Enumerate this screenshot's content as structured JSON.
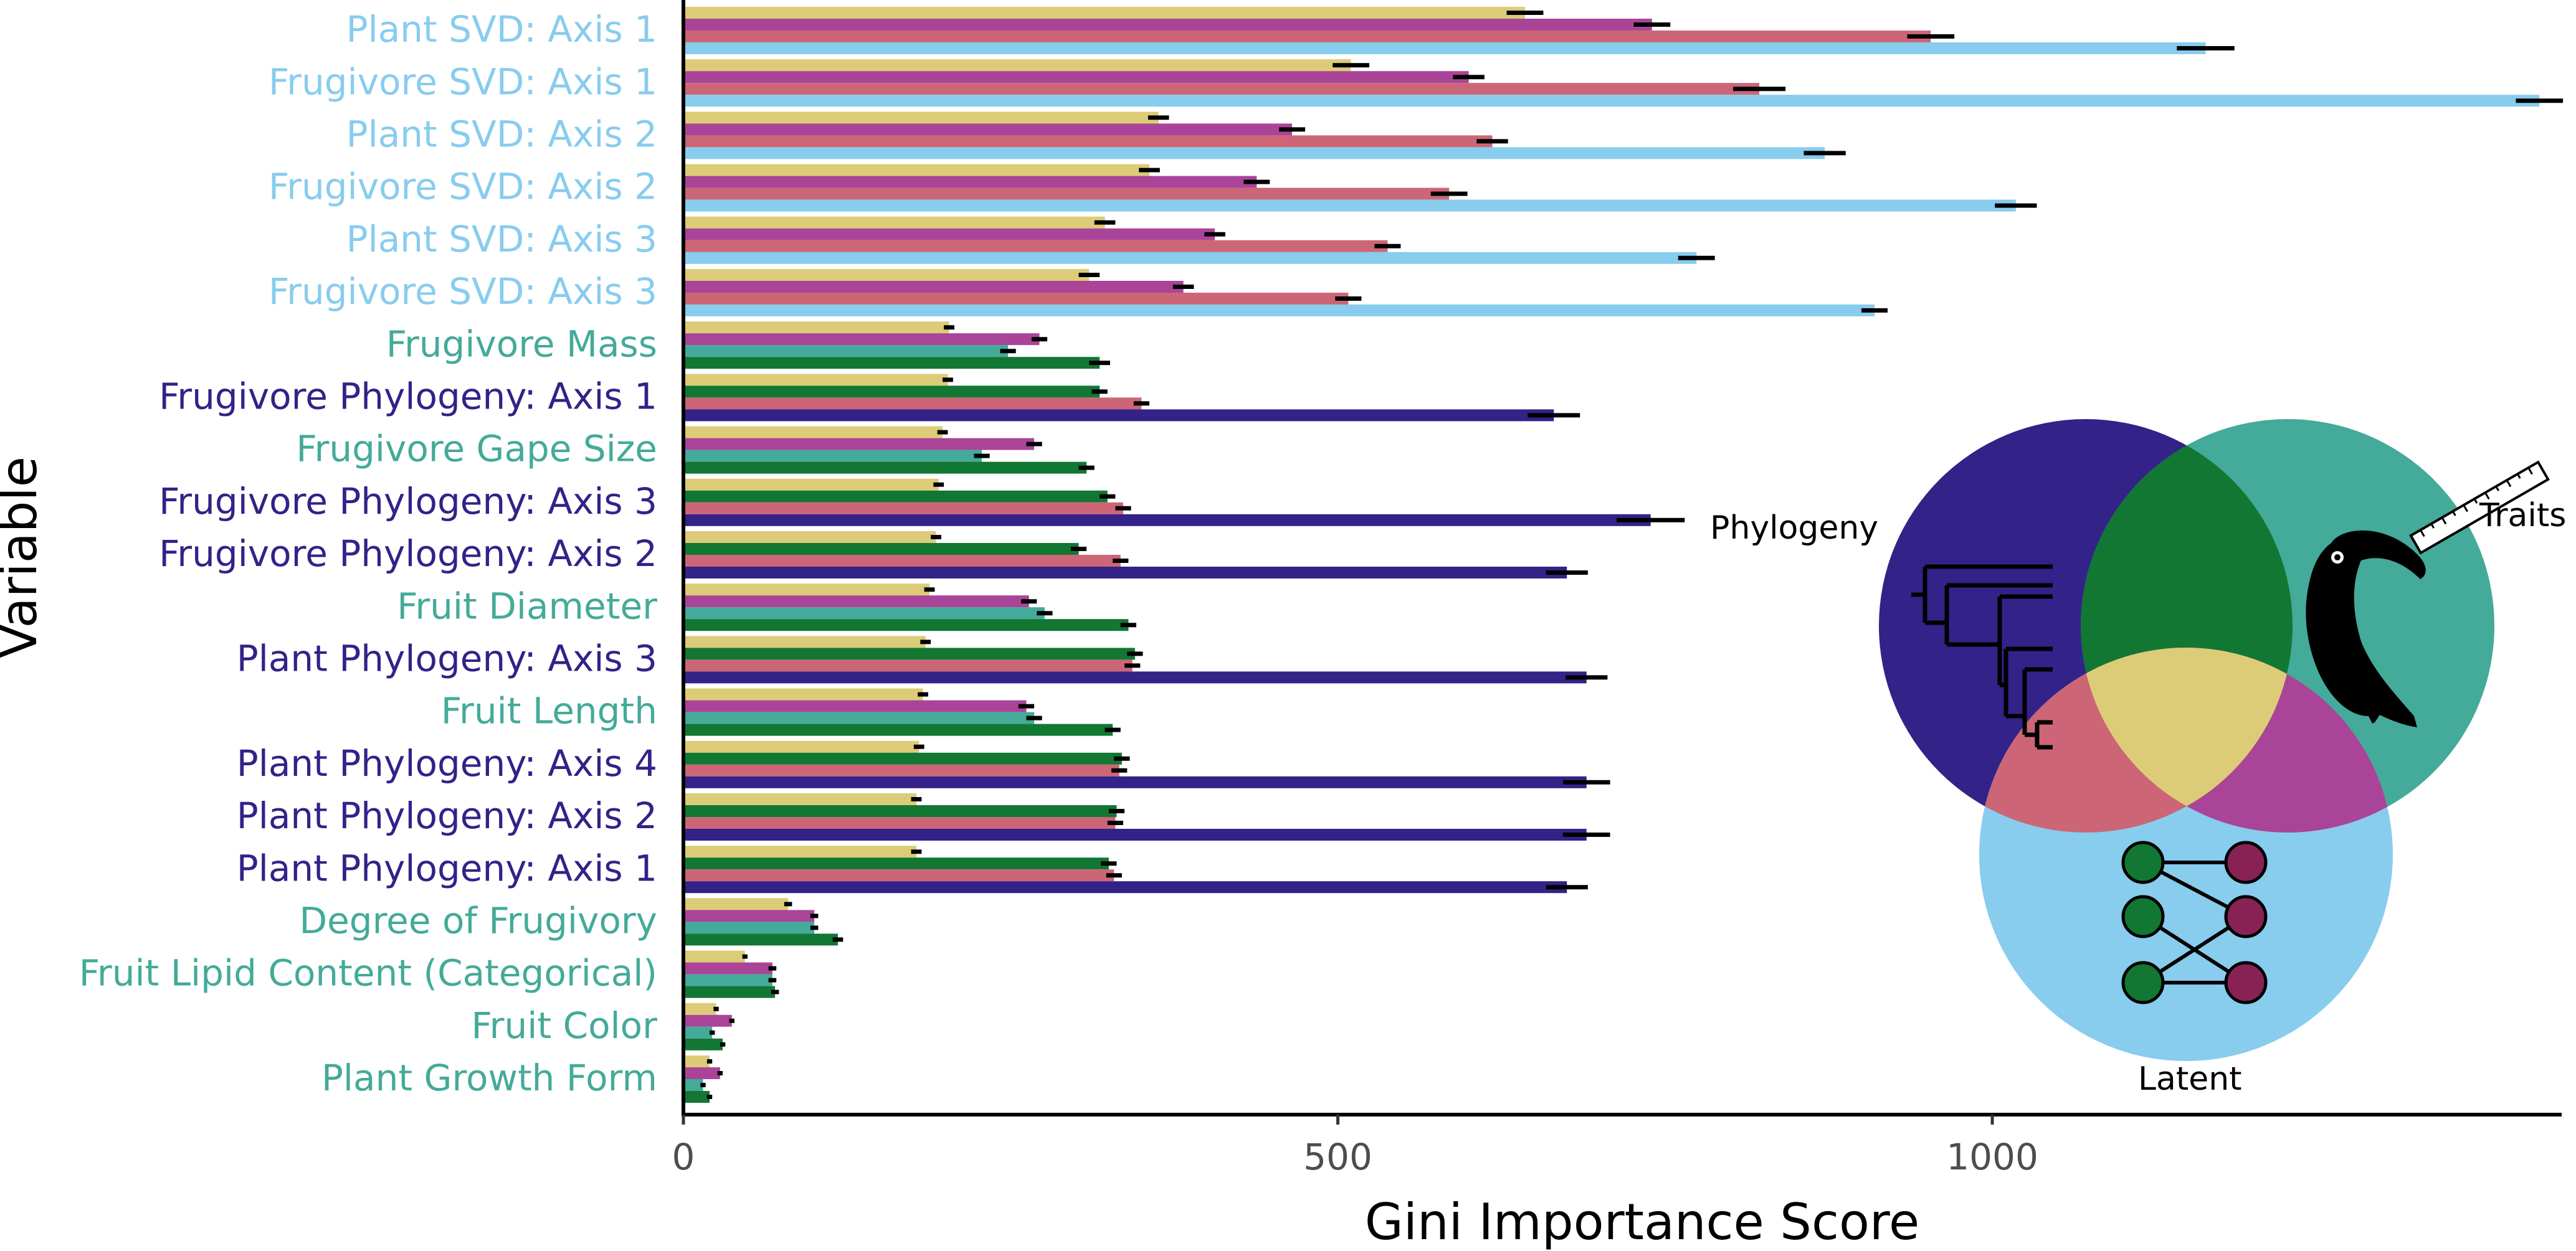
{
  "chart_data": {
    "type": "bar",
    "orientation": "horizontal",
    "xlabel": "Gini Importance Score",
    "ylabel": "Variable",
    "xlim": [
      0,
      1435
    ],
    "xticks": [
      0,
      500,
      1000
    ],
    "grid": false,
    "legend": "none",
    "group_colors": {
      "latent": "#88CCEE",
      "traits": "#44AA99",
      "phylogeny": "#332288"
    },
    "fill_colors": {
      "yellow": "#DDCC77",
      "purple": "#AA4499",
      "red": "#CC6677",
      "green": "#117733",
      "teal": "#44AA99",
      "lightblue": "#88CCEE",
      "navy": "#332288"
    },
    "categories": [
      {
        "label": "Plant SVD: Axis 1",
        "group": "latent",
        "bars": [
          {
            "fill": "yellow",
            "value": 643,
            "err": 14
          },
          {
            "fill": "purple",
            "value": 740,
            "err": 14
          },
          {
            "fill": "red",
            "value": 953,
            "err": 18
          },
          {
            "fill": "lightblue",
            "value": 1163,
            "err": 22
          }
        ]
      },
      {
        "label": "Frugivore SVD: Axis 1",
        "group": "latent",
        "bars": [
          {
            "fill": "yellow",
            "value": 510,
            "err": 14
          },
          {
            "fill": "purple",
            "value": 600,
            "err": 12
          },
          {
            "fill": "red",
            "value": 822,
            "err": 20
          },
          {
            "fill": "lightblue",
            "value": 1418,
            "err": 18
          }
        ]
      },
      {
        "label": "Plant SVD: Axis 2",
        "group": "latent",
        "bars": [
          {
            "fill": "yellow",
            "value": 363,
            "err": 8
          },
          {
            "fill": "purple",
            "value": 465,
            "err": 10
          },
          {
            "fill": "red",
            "value": 618,
            "err": 12
          },
          {
            "fill": "lightblue",
            "value": 872,
            "err": 16
          }
        ]
      },
      {
        "label": "Frugivore SVD: Axis 2",
        "group": "latent",
        "bars": [
          {
            "fill": "yellow",
            "value": 356,
            "err": 8
          },
          {
            "fill": "purple",
            "value": 438,
            "err": 10
          },
          {
            "fill": "red",
            "value": 585,
            "err": 14
          },
          {
            "fill": "lightblue",
            "value": 1018,
            "err": 16
          }
        ]
      },
      {
        "label": "Plant SVD: Axis 3",
        "group": "latent",
        "bars": [
          {
            "fill": "yellow",
            "value": 322,
            "err": 8
          },
          {
            "fill": "purple",
            "value": 406,
            "err": 8
          },
          {
            "fill": "red",
            "value": 538,
            "err": 10
          },
          {
            "fill": "lightblue",
            "value": 774,
            "err": 14
          }
        ]
      },
      {
        "label": "Frugivore SVD: Axis 3",
        "group": "latent",
        "bars": [
          {
            "fill": "yellow",
            "value": 310,
            "err": 8
          },
          {
            "fill": "purple",
            "value": 382,
            "err": 8
          },
          {
            "fill": "red",
            "value": 508,
            "err": 10
          },
          {
            "fill": "lightblue",
            "value": 910,
            "err": 10
          }
        ]
      },
      {
        "label": "Frugivore Mass",
        "group": "traits",
        "bars": [
          {
            "fill": "yellow",
            "value": 203,
            "err": 4
          },
          {
            "fill": "purple",
            "value": 272,
            "err": 6
          },
          {
            "fill": "teal",
            "value": 248,
            "err": 6
          },
          {
            "fill": "green",
            "value": 318,
            "err": 8
          }
        ]
      },
      {
        "label": "Frugivore Phylogeny: Axis 1",
        "group": "phylogeny",
        "bars": [
          {
            "fill": "yellow",
            "value": 202,
            "err": 4
          },
          {
            "fill": "green",
            "value": 318,
            "err": 6
          },
          {
            "fill": "red",
            "value": 350,
            "err": 6
          },
          {
            "fill": "navy",
            "value": 665,
            "err": 20
          }
        ]
      },
      {
        "label": "Frugivore Gape Size",
        "group": "traits",
        "bars": [
          {
            "fill": "yellow",
            "value": 198,
            "err": 4
          },
          {
            "fill": "purple",
            "value": 268,
            "err": 6
          },
          {
            "fill": "teal",
            "value": 228,
            "err": 6
          },
          {
            "fill": "green",
            "value": 308,
            "err": 6
          }
        ]
      },
      {
        "label": "Frugivore Phylogeny: Axis 3",
        "group": "phylogeny",
        "bars": [
          {
            "fill": "yellow",
            "value": 195,
            "err": 4
          },
          {
            "fill": "green",
            "value": 324,
            "err": 6
          },
          {
            "fill": "red",
            "value": 336,
            "err": 6
          },
          {
            "fill": "navy",
            "value": 739,
            "err": 26
          }
        ]
      },
      {
        "label": "Frugivore Phylogeny: Axis 2",
        "group": "phylogeny",
        "bars": [
          {
            "fill": "yellow",
            "value": 193,
            "err": 4
          },
          {
            "fill": "green",
            "value": 302,
            "err": 6
          },
          {
            "fill": "red",
            "value": 334,
            "err": 6
          },
          {
            "fill": "navy",
            "value": 675,
            "err": 16
          }
        ]
      },
      {
        "label": "Fruit Diameter",
        "group": "traits",
        "bars": [
          {
            "fill": "yellow",
            "value": 188,
            "err": 4
          },
          {
            "fill": "purple",
            "value": 264,
            "err": 6
          },
          {
            "fill": "teal",
            "value": 276,
            "err": 6
          },
          {
            "fill": "green",
            "value": 340,
            "err": 6
          }
        ]
      },
      {
        "label": "Plant Phylogeny: Axis 3",
        "group": "phylogeny",
        "bars": [
          {
            "fill": "yellow",
            "value": 185,
            "err": 4
          },
          {
            "fill": "green",
            "value": 345,
            "err": 6
          },
          {
            "fill": "red",
            "value": 343,
            "err": 6
          },
          {
            "fill": "navy",
            "value": 690,
            "err": 16
          }
        ]
      },
      {
        "label": "Fruit Length",
        "group": "traits",
        "bars": [
          {
            "fill": "yellow",
            "value": 183,
            "err": 4
          },
          {
            "fill": "purple",
            "value": 262,
            "err": 6
          },
          {
            "fill": "teal",
            "value": 268,
            "err": 6
          },
          {
            "fill": "green",
            "value": 328,
            "err": 6
          }
        ]
      },
      {
        "label": "Plant Phylogeny: Axis 4",
        "group": "phylogeny",
        "bars": [
          {
            "fill": "yellow",
            "value": 180,
            "err": 4
          },
          {
            "fill": "green",
            "value": 335,
            "err": 6
          },
          {
            "fill": "red",
            "value": 333,
            "err": 6
          },
          {
            "fill": "navy",
            "value": 690,
            "err": 18
          }
        ]
      },
      {
        "label": "Plant Phylogeny: Axis 2",
        "group": "phylogeny",
        "bars": [
          {
            "fill": "yellow",
            "value": 178,
            "err": 4
          },
          {
            "fill": "green",
            "value": 331,
            "err": 6
          },
          {
            "fill": "red",
            "value": 330,
            "err": 6
          },
          {
            "fill": "navy",
            "value": 690,
            "err": 18
          }
        ]
      },
      {
        "label": "Plant Phylogeny: Axis 1",
        "group": "phylogeny",
        "bars": [
          {
            "fill": "yellow",
            "value": 178,
            "err": 4
          },
          {
            "fill": "green",
            "value": 325,
            "err": 6
          },
          {
            "fill": "red",
            "value": 329,
            "err": 6
          },
          {
            "fill": "navy",
            "value": 675,
            "err": 16
          }
        ]
      },
      {
        "label": "Degree of Frugivory",
        "group": "traits",
        "bars": [
          {
            "fill": "yellow",
            "value": 80,
            "err": 3
          },
          {
            "fill": "purple",
            "value": 100,
            "err": 3
          },
          {
            "fill": "teal",
            "value": 100,
            "err": 3
          },
          {
            "fill": "green",
            "value": 118,
            "err": 4
          }
        ]
      },
      {
        "label": "Fruit Lipid Content (Categorical)",
        "group": "traits",
        "bars": [
          {
            "fill": "yellow",
            "value": 47,
            "err": 2
          },
          {
            "fill": "purple",
            "value": 68,
            "err": 3
          },
          {
            "fill": "teal",
            "value": 68,
            "err": 3
          },
          {
            "fill": "green",
            "value": 70,
            "err": 3
          }
        ]
      },
      {
        "label": "Fruit Color",
        "group": "traits",
        "bars": [
          {
            "fill": "yellow",
            "value": 25,
            "err": 2
          },
          {
            "fill": "purple",
            "value": 37,
            "err": 2
          },
          {
            "fill": "teal",
            "value": 22,
            "err": 2
          },
          {
            "fill": "green",
            "value": 30,
            "err": 2
          }
        ]
      },
      {
        "label": "Plant Growth Form",
        "group": "traits",
        "bars": [
          {
            "fill": "yellow",
            "value": 20,
            "err": 2
          },
          {
            "fill": "purple",
            "value": 28,
            "err": 2
          },
          {
            "fill": "teal",
            "value": 15,
            "err": 2
          },
          {
            "fill": "green",
            "value": 20,
            "err": 2
          }
        ]
      }
    ]
  },
  "venn": {
    "labels": {
      "phylogeny": "Phylogeny",
      "traits": "Traits",
      "latent": "Latent"
    },
    "icons": [
      "phylogeny-tree-icon",
      "toucan-with-ruler-icon",
      "bipartite-network-icon"
    ],
    "colors": {
      "phylogeny": "#332288",
      "traits": "#44AA99",
      "latent": "#88CCEE",
      "phylogeny_traits": "#117733",
      "phylogeny_latent": "#CC6677",
      "traits_latent": "#AA4499",
      "all_three": "#DDCC77",
      "network_left_node": "#117733",
      "network_right_node": "#882255"
    }
  }
}
